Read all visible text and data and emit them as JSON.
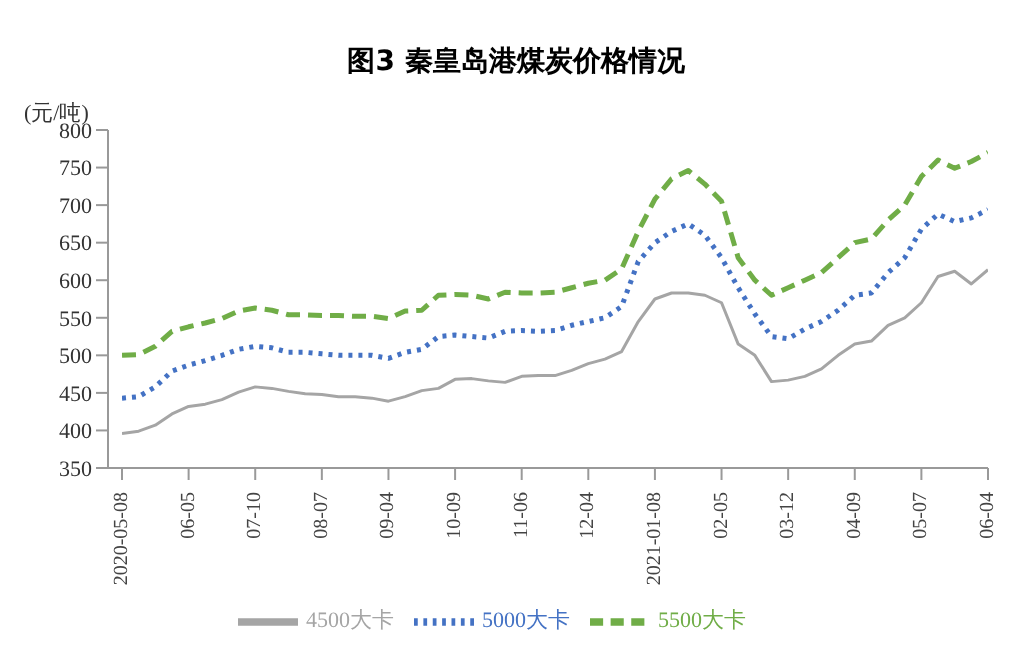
{
  "chart_data": {
    "type": "line",
    "title": "图3  秦皇岛港煤炭价格情况",
    "ylabel": "(元/吨)",
    "categories": [
      "2020-05-08",
      null,
      null,
      null,
      "06-05",
      null,
      null,
      null,
      "07-10",
      null,
      null,
      null,
      "08-07",
      null,
      null,
      null,
      "09-04",
      null,
      null,
      null,
      "10-09",
      null,
      null,
      null,
      "11-06",
      null,
      null,
      null,
      "12-04",
      null,
      null,
      null,
      "2021-01-08",
      null,
      null,
      null,
      "02-05",
      null,
      null,
      null,
      "03-12",
      null,
      null,
      null,
      "04-09",
      null,
      null,
      null,
      "05-07",
      null,
      null,
      null,
      "06-04"
    ],
    "series": [
      {
        "name": "5500大卡",
        "color": "#70ad47",
        "line_style": "dashed",
        "values": [
          500,
          501,
          512,
          532,
          538,
          543,
          549,
          559,
          563,
          560,
          554,
          554,
          553,
          553,
          552,
          552,
          549,
          559,
          560,
          580,
          581,
          580,
          575,
          584,
          583,
          583,
          584,
          590,
          596,
          600,
          615,
          665,
          708,
          735,
          746,
          728,
          705,
          630,
          600,
          580,
          590,
          600,
          610,
          630,
          650,
          655,
          680,
          700,
          738,
          760,
          749,
          758,
          770
        ]
      },
      {
        "name": "5000大卡",
        "color": "#4472c4",
        "line_style": "dotted",
        "values": [
          443,
          445,
          458,
          479,
          487,
          493,
          500,
          508,
          512,
          510,
          504,
          504,
          502,
          500,
          500,
          500,
          496,
          504,
          508,
          525,
          527,
          525,
          523,
          532,
          533,
          532,
          533,
          540,
          545,
          550,
          565,
          625,
          650,
          665,
          675,
          660,
          630,
          590,
          555,
          525,
          522,
          535,
          545,
          560,
          580,
          583,
          610,
          630,
          668,
          688,
          678,
          683,
          694
        ]
      },
      {
        "name": "4500大卡",
        "color": "#a5a5a5",
        "line_style": "solid",
        "values": [
          396,
          399,
          407,
          422,
          432,
          435,
          441,
          451,
          458,
          456,
          452,
          449,
          448,
          445,
          445,
          443,
          439,
          445,
          453,
          456,
          468,
          469,
          466,
          464,
          472,
          473,
          473,
          480,
          489,
          495,
          505,
          545,
          575,
          583,
          583,
          580,
          570,
          515,
          500,
          465,
          467,
          472,
          482,
          500,
          515,
          519,
          540,
          550,
          570,
          605,
          612,
          595,
          614
        ]
      }
    ],
    "ylim": [
      350,
      800
    ],
    "yticks": [
      350,
      400,
      450,
      500,
      550,
      600,
      650,
      700,
      750,
      800
    ],
    "grid": false,
    "legend": "bottom",
    "marker": "none"
  }
}
